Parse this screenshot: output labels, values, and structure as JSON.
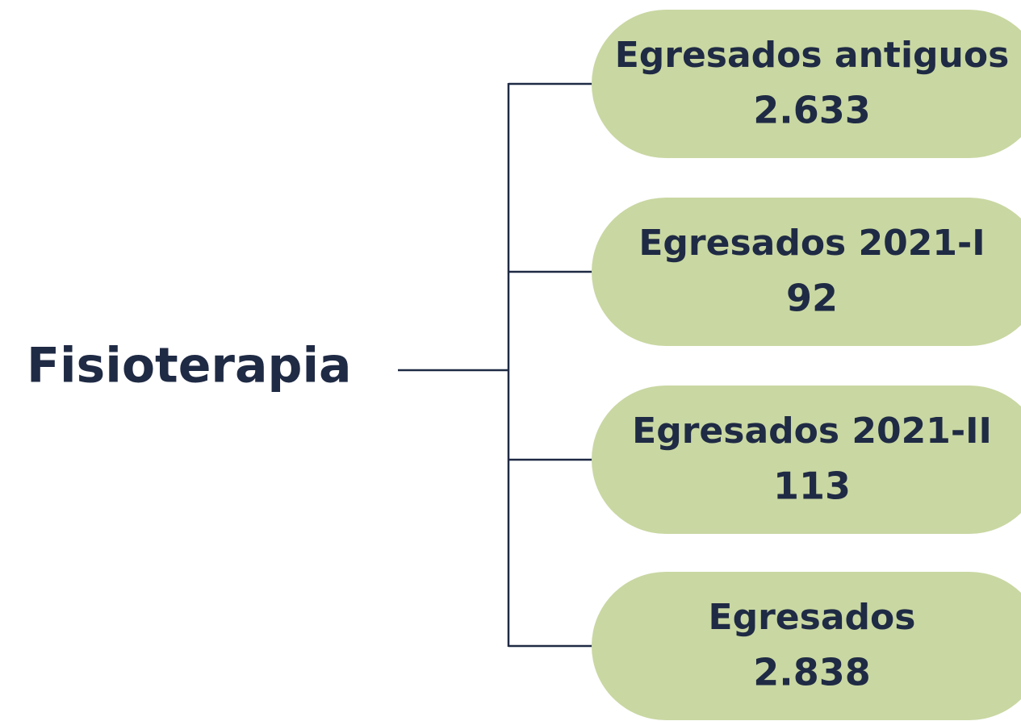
{
  "root": {
    "label": "Fisioterapia"
  },
  "nodes": [
    {
      "label": "Egresados antiguos",
      "value": "2.633"
    },
    {
      "label": "Egresados 2021-I",
      "value": "92"
    },
    {
      "label": "Egresados 2021-II",
      "value": "113"
    },
    {
      "label": "Egresados",
      "value": "2.838"
    }
  ]
}
